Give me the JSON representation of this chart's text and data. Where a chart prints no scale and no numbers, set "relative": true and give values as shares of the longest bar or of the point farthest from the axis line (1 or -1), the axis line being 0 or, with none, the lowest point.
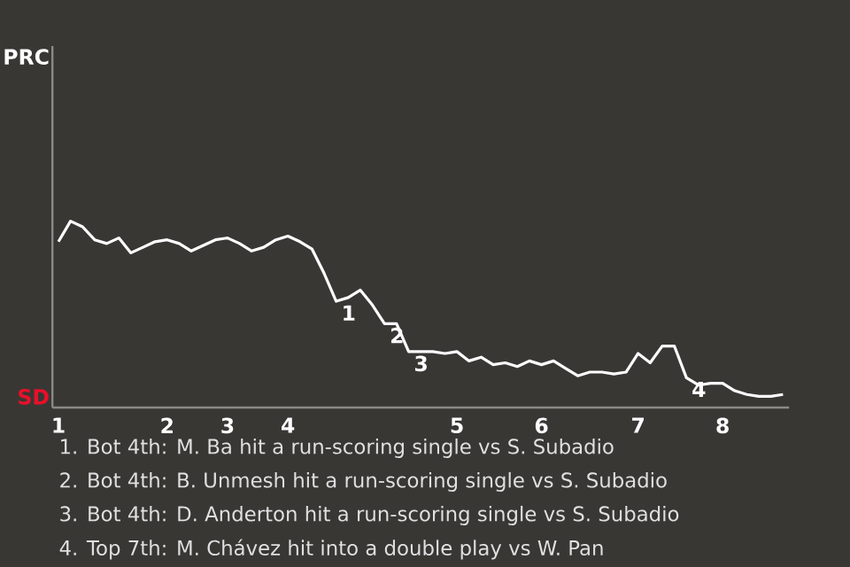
{
  "chart_data": {
    "type": "line",
    "relative": true,
    "categories": [
      "1",
      null,
      null,
      null,
      null,
      null,
      null,
      null,
      null,
      "2",
      null,
      null,
      null,
      null,
      "3",
      null,
      null,
      null,
      null,
      "4",
      null,
      null,
      null,
      null,
      null,
      null,
      null,
      null,
      null,
      null,
      null,
      null,
      null,
      "5",
      null,
      null,
      null,
      null,
      null,
      null,
      "6",
      null,
      null,
      null,
      null,
      null,
      null,
      null,
      "7",
      null,
      null,
      null,
      null,
      null,
      null,
      "8",
      null,
      null,
      null,
      null,
      null
    ],
    "series": [
      {
        "color": "#ffffff",
        "values": [
          0.89,
          1.0,
          0.97,
          0.9,
          0.88,
          0.91,
          0.83,
          0.86,
          0.89,
          0.9,
          0.88,
          0.84,
          0.87,
          0.9,
          0.91,
          0.88,
          0.84,
          0.86,
          0.9,
          0.92,
          0.89,
          0.85,
          0.72,
          0.57,
          0.59,
          0.63,
          0.55,
          0.45,
          0.45,
          0.3,
          0.3,
          0.3,
          0.29,
          0.3,
          0.25,
          0.27,
          0.23,
          0.24,
          0.22,
          0.25,
          0.23,
          0.25,
          0.21,
          0.17,
          0.19,
          0.19,
          0.18,
          0.19,
          0.29,
          0.24,
          0.33,
          0.33,
          0.16,
          0.12,
          0.13,
          0.13,
          0.09,
          0.07,
          0.06,
          0.06,
          0.07
        ],
        "name": null
      }
    ],
    "annotations": [
      "PRC",
      "SD",
      {
        "text": "1",
        "y": 0.57
      },
      {
        "text": "2",
        "y": 0.45
      },
      {
        "text": "3",
        "y": 0.3
      },
      {
        "text": "4",
        "y": 0.16
      },
      "1. Bot 4th: M. Ba hit a run-scoring single vs S. Subadio",
      "2. Bot 4th: B. Unmesh hit a run-scoring single vs S. Subadio",
      "3. Bot 4th: D. Anderton hit a run-scoring single vs S. Subadio",
      "4. Top 7th: M. Chávez hit into a double play vs W. Pan"
    ]
  }
}
